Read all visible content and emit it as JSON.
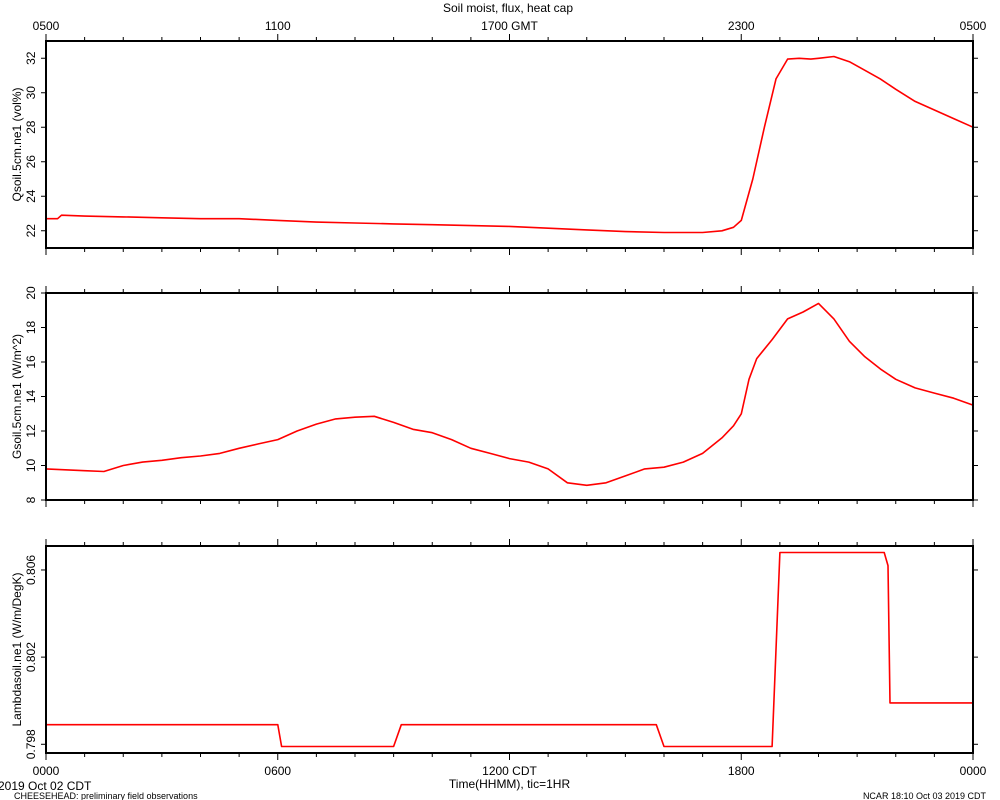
{
  "title": "Soil moist, flux, heat cap",
  "footer": {
    "left_date": "2019 Oct 02 CDT",
    "project": "CHEESEHEAD: preliminary field observations",
    "right": "NCAR 18:10 Oct 03 2019 CDT"
  },
  "colors": {
    "series": "#ff0000",
    "axes": "#000000"
  },
  "chart_data": [
    {
      "type": "line",
      "ylabel": "Qsoil.5cm.ne1 (vol%)",
      "xlim_hours": [
        0,
        24
      ],
      "ylim": [
        21,
        33
      ],
      "yticks": [
        22,
        24,
        26,
        28,
        30,
        32
      ],
      "top_axis_labels": [
        {
          "hour": 0,
          "label": "0500"
        },
        {
          "hour": 6,
          "label": "1100"
        },
        {
          "hour": 12,
          "label": "1700 GMT"
        },
        {
          "hour": 18,
          "label": "2300"
        },
        {
          "hour": 24,
          "label": "0500"
        }
      ],
      "series": [
        {
          "x": [
            0,
            0.3,
            0.4,
            1,
            2,
            3,
            4,
            5,
            6,
            7,
            8,
            9,
            10,
            11,
            12,
            13,
            14,
            15,
            16,
            17,
            17.5,
            17.8,
            18,
            18.3,
            18.6,
            18.9,
            19.2,
            19.5,
            19.8,
            20,
            20.4,
            20.8,
            21.2,
            21.6,
            22,
            22.5,
            23,
            23.5,
            24
          ],
          "y": [
            22.7,
            22.7,
            22.9,
            22.85,
            22.8,
            22.75,
            22.7,
            22.7,
            22.6,
            22.5,
            22.45,
            22.4,
            22.35,
            22.3,
            22.25,
            22.15,
            22.05,
            21.95,
            21.9,
            21.9,
            22.0,
            22.2,
            22.6,
            25,
            28,
            30.8,
            31.95,
            32.0,
            31.95,
            32.0,
            32.1,
            31.8,
            31.3,
            30.8,
            30.2,
            29.5,
            29.0,
            28.5,
            28.0
          ]
        }
      ]
    },
    {
      "type": "line",
      "ylabel": "Gsoil.5cm.ne1 (W/m^2)",
      "xlim_hours": [
        0,
        24
      ],
      "ylim": [
        8,
        20
      ],
      "yticks": [
        8,
        10,
        12,
        14,
        16,
        18,
        20
      ],
      "series": [
        {
          "x": [
            0,
            0.5,
            1,
            1.5,
            2,
            2.5,
            3,
            3.5,
            4,
            4.5,
            5,
            5.5,
            6,
            6.5,
            7,
            7.5,
            8,
            8.5,
            9,
            9.5,
            10,
            10.5,
            11,
            11.5,
            12,
            12.5,
            13,
            13.5,
            14,
            14.5,
            15,
            15.5,
            16,
            16.5,
            17,
            17.5,
            17.8,
            18,
            18.2,
            18.4,
            18.8,
            19.2,
            19.6,
            20,
            20.4,
            20.8,
            21.2,
            21.6,
            22,
            22.5,
            23,
            23.5,
            24
          ],
          "y": [
            9.8,
            9.75,
            9.7,
            9.65,
            10.0,
            10.2,
            10.3,
            10.45,
            10.55,
            10.7,
            11.0,
            11.25,
            11.5,
            12.0,
            12.4,
            12.7,
            12.8,
            12.85,
            12.5,
            12.1,
            11.9,
            11.5,
            11.0,
            10.7,
            10.4,
            10.2,
            9.8,
            9.0,
            8.85,
            9.0,
            9.4,
            9.8,
            9.9,
            10.2,
            10.7,
            11.6,
            12.3,
            13.0,
            15.0,
            16.2,
            17.3,
            18.5,
            18.9,
            19.4,
            18.5,
            17.2,
            16.3,
            15.6,
            15.0,
            14.5,
            14.2,
            13.9,
            13.5
          ]
        }
      ]
    },
    {
      "type": "line",
      "ylabel": "Lambdasoil.ne1 (W/m/DegK)",
      "xlabel": "Time(HHMM), tic=1HR",
      "xlim_hours": [
        0,
        24
      ],
      "ylim": [
        0.7976,
        0.8071
      ],
      "yticks": [
        0.798,
        0.802,
        0.806
      ],
      "bottom_axis_labels": [
        {
          "hour": 0,
          "label": "0000"
        },
        {
          "hour": 6,
          "label": "0600"
        },
        {
          "hour": 12,
          "label": "1200 CDT"
        },
        {
          "hour": 18,
          "label": "1800"
        },
        {
          "hour": 24,
          "label": "0000"
        }
      ],
      "series": [
        {
          "x": [
            0,
            6.0,
            6.1,
            9.0,
            9.2,
            15.8,
            16.0,
            18.8,
            19.0,
            21.7,
            21.8,
            21.85,
            24
          ],
          "y": [
            0.7989,
            0.7989,
            0.7979,
            0.7979,
            0.7989,
            0.7989,
            0.7979,
            0.7979,
            0.8068,
            0.8068,
            0.8062,
            0.7999,
            0.7999
          ]
        }
      ]
    }
  ]
}
